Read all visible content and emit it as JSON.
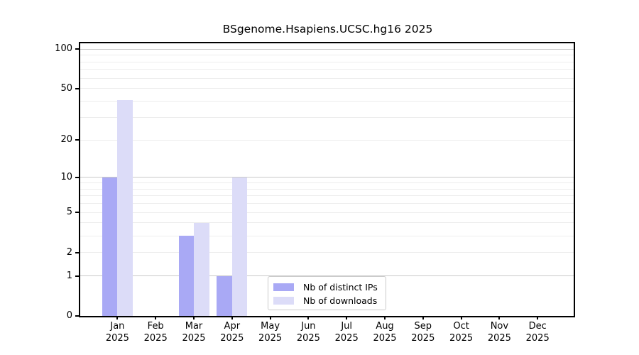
{
  "chart_data": {
    "type": "bar",
    "title": "BSgenome.Hsapiens.UCSC.hg16 2025",
    "categories": [
      "Jan",
      "Feb",
      "Mar",
      "Apr",
      "May",
      "Jun",
      "Jul",
      "Aug",
      "Sep",
      "Oct",
      "Nov",
      "Dec"
    ],
    "x_tick_year": "2025",
    "series": [
      {
        "name": "Nb of distinct IPs",
        "color": "#a9a9f5",
        "values": [
          10,
          0,
          3,
          1,
          0,
          0,
          0,
          0,
          0,
          0,
          0,
          0
        ]
      },
      {
        "name": "Nb of downloads",
        "color": "#dcdcf8",
        "values": [
          41,
          0,
          4,
          10,
          0,
          0,
          0,
          0,
          0,
          0,
          0,
          0
        ]
      }
    ],
    "yscale": "log1p",
    "ylim": [
      0,
      110
    ],
    "y_tick_labels": [
      0,
      1,
      2,
      5,
      10,
      20,
      50,
      100
    ],
    "minor_gridlines": [
      2,
      3,
      4,
      5,
      6,
      7,
      8,
      9,
      20,
      30,
      40,
      50,
      60,
      70,
      80,
      90
    ],
    "major_gridlines": [
      1,
      10,
      100
    ],
    "grid": true,
    "legend_position": "lower center",
    "xlabel": "",
    "ylabel": ""
  },
  "colors": {
    "axis": "#000000",
    "text": "#000000",
    "minor_grid": "#ededed",
    "major_grid": "#c9c9c9",
    "legend_border": "#cbcbcb",
    "background": "#ffffff"
  }
}
